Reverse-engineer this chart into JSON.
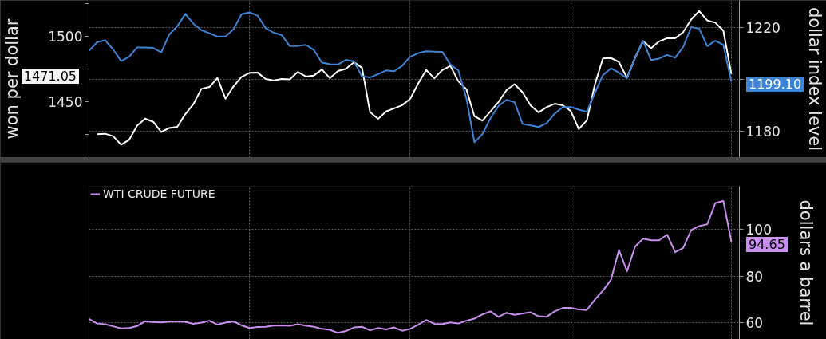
{
  "chart_data": [
    {
      "type": "line",
      "ylabel": "won per dollar",
      "y2label": "dollar index level",
      "annotations": [
        "1471.05"
      ],
      "categories": [
        null,
        null,
        null,
        null,
        null,
        null,
        null,
        null,
        null,
        null,
        null,
        null,
        null,
        null,
        null,
        null,
        null,
        null,
        null,
        null,
        null,
        null,
        null,
        null,
        null,
        null,
        null,
        null,
        null,
        null,
        null,
        null,
        null,
        null,
        null,
        null,
        null,
        null,
        null,
        null,
        null,
        null,
        null,
        null,
        null,
        null,
        null,
        null,
        null,
        null,
        null,
        null,
        null,
        null,
        null,
        null,
        null,
        null,
        null,
        null,
        null,
        null,
        null,
        null,
        null,
        null,
        null,
        null,
        null,
        null,
        null,
        null,
        null,
        null,
        null,
        null,
        null,
        null,
        null,
        null,
        null,
        null
      ],
      "ylim": [
        1407.3,
        1527.4
      ],
      "yticks": [
        {
          "value": 1525,
          "label": null
        },
        1500,
        {
          "value": 1475,
          "label": null
        },
        1450,
        {
          "value": 1425,
          "label": null
        }
      ],
      "y2lim": [
        1169.8,
        1230.6
      ],
      "y2ticks": [
        1220,
        {
          "value": 1200,
          "label": null
        },
        1180
      ],
      "grid": true,
      "tick_labels": "y",
      "series": [
        {
          "color": "#ffffff",
          "axis": "y",
          "values": [
            null,
            1425.2,
            1425.5,
            1423.7,
            1417.1,
            1420.8,
            1431.7,
            1437.0,
            1434.6,
            1426.8,
            1429.9,
            1430.8,
            1440.5,
            1448.0,
            1459.8,
            1461.2,
            1468.1,
            1452.3,
            1461.7,
            1468.9,
            1472.0,
            1472.3,
            1467.4,
            1466.2,
            1467.3,
            1467.0,
            1472.7,
            1469.2,
            1470.0,
            1474.6,
            1468.0,
            1473.4,
            1475.1,
            1480.1,
            1476.0,
            1442.0,
            1436.8,
            1442.5,
            1444.9,
            1447.3,
            1452.1,
            1464.0,
            1474.2,
            1467.9,
            1474.2,
            1477.4,
            1465.6,
            1459.5,
            1438.9,
            1435.4,
            1442.6,
            1449.8,
            1458.8,
            1463.4,
            1457.1,
            1447.1,
            1441.8,
            1445.8,
            1448.4,
            1447.2,
            1442.9,
            1429.0,
            1435.7,
            1463.1,
            1483.0,
            1483.4,
            1480.3,
            1468.3,
            1483.5,
            1496.3,
            1490.8,
            1496.1,
            1498.5,
            1498.4,
            1503.2,
            1512.9,
            1519.3,
            1512.1,
            1510.4,
            1504.2,
            1471.05,
            null
          ]
        },
        {
          "color": "#3d84d6",
          "axis": "y2",
          "values": [
            1211.1,
            1214.4,
            1215.2,
            1211.7,
            1207.1,
            1208.8,
            1212.4,
            1212.4,
            1212.2,
            1210.5,
            1217.4,
            1220.6,
            1225.4,
            1221.6,
            1219.1,
            1217.9,
            1216.6,
            1216.6,
            1219.5,
            1225.3,
            1226.0,
            1224.7,
            1219.9,
            1218.1,
            1217.2,
            1212.9,
            1213.0,
            1213.4,
            1211.4,
            1206.5,
            1205.9,
            1205.8,
            1207.6,
            1207.0,
            1201.2,
            1200.8,
            1202.1,
            1203.5,
            1203.2,
            1205.3,
            1208.8,
            1210.2,
            1210.9,
            1210.8,
            1210.7,
            1205.8,
            1203.5,
            1192.6,
            1175.7,
            1178.9,
            1185.0,
            1189.8,
            1192.1,
            1191.2,
            1182.8,
            1182.2,
            1181.6,
            1183.1,
            1186.8,
            1189.3,
            1189.3,
            1188.3,
            1187.5,
            1194.8,
            1201.7,
            1204.3,
            1202.6,
            1200.5,
            1208.4,
            1215.0,
            1207.5,
            1208.1,
            1209.5,
            1208.4,
            1212.6,
            1220.3,
            1219.6,
            1212.9,
            1215.0,
            1213.4,
            1199.1,
            null
          ],
          "value_labels": [
            null,
            null,
            null,
            null,
            null,
            null,
            null,
            null,
            null,
            null,
            null,
            null,
            null,
            null,
            null,
            null,
            null,
            null,
            null,
            null,
            null,
            null,
            null,
            null,
            null,
            null,
            null,
            null,
            null,
            null,
            null,
            null,
            null,
            null,
            null,
            null,
            null,
            null,
            null,
            null,
            null,
            null,
            null,
            null,
            null,
            null,
            null,
            null,
            null,
            null,
            null,
            null,
            null,
            null,
            null,
            null,
            null,
            null,
            null,
            null,
            null,
            null,
            null,
            null,
            null,
            null,
            null,
            null,
            null,
            null,
            null,
            null,
            null,
            null,
            null,
            null,
            null,
            null,
            null,
            null,
            "1199.10",
            null
          ]
        }
      ]
    },
    {
      "type": "line",
      "ylabel": "dollars a barrel",
      "legend": "top left",
      "categories": [
        null,
        null,
        null,
        null,
        null,
        null,
        null,
        null,
        null,
        null,
        null,
        null,
        null,
        null,
        null,
        null,
        null,
        null,
        null,
        null,
        null,
        null,
        null,
        null,
        null,
        null,
        null,
        null,
        null,
        null,
        null,
        null,
        null,
        null,
        null,
        null,
        null,
        null,
        null,
        null,
        null,
        null,
        null,
        null,
        null,
        null,
        null,
        null,
        null,
        null,
        null,
        null,
        null,
        null,
        null,
        null,
        null,
        null,
        null,
        null,
        null,
        null,
        null,
        null,
        null,
        null,
        null,
        null,
        null,
        null,
        null,
        null,
        null,
        null,
        null,
        null,
        null,
        null,
        null,
        null,
        null,
        null
      ],
      "ylim": [
        52.8,
        118.5
      ],
      "yticks": [
        100,
        80,
        60
      ],
      "grid": true,
      "tick_labels": "y",
      "series": [
        {
          "name": "WTI CRUDE FUTURE",
          "color": "#c88ff0",
          "values": [
            61.6,
            59.6,
            59.3,
            58.4,
            57.5,
            57.7,
            58.5,
            60.6,
            60.2,
            60.1,
            60.4,
            60.5,
            60.3,
            59.5,
            60.0,
            60.8,
            59.1,
            60.0,
            60.5,
            58.8,
            57.7,
            58.1,
            58.2,
            58.7,
            58.8,
            58.6,
            59.3,
            58.7,
            58.2,
            57.3,
            56.9,
            55.6,
            56.4,
            57.9,
            58.2,
            56.7,
            57.7,
            57.1,
            57.9,
            56.5,
            57.3,
            59.1,
            61.1,
            59.5,
            59.4,
            60.1,
            59.6,
            60.8,
            61.7,
            63.5,
            64.8,
            62.4,
            64.2,
            63.3,
            63.9,
            64.4,
            62.7,
            62.5,
            64.8,
            66.3,
            66.3,
            65.6,
            65.4,
            69.9,
            73.7,
            78.3,
            91.2,
            82.0,
            92.6,
            96.0,
            95.3,
            95.3,
            97.7,
            90.2,
            92.0,
            99.7,
            101.4,
            102.2,
            111.3,
            112.2,
            94.65,
            null
          ],
          "value_labels": [
            null,
            null,
            null,
            null,
            null,
            null,
            null,
            null,
            null,
            null,
            null,
            null,
            null,
            null,
            null,
            null,
            null,
            null,
            null,
            null,
            null,
            null,
            null,
            null,
            null,
            null,
            null,
            null,
            null,
            null,
            null,
            null,
            null,
            null,
            null,
            null,
            null,
            null,
            null,
            null,
            null,
            null,
            null,
            null,
            null,
            null,
            null,
            null,
            null,
            null,
            null,
            null,
            null,
            null,
            null,
            null,
            null,
            null,
            null,
            null,
            null,
            null,
            null,
            null,
            null,
            null,
            null,
            null,
            null,
            null,
            null,
            null,
            null,
            null,
            null,
            null,
            null,
            null,
            null,
            null,
            "94.65",
            null
          ]
        }
      ]
    }
  ]
}
